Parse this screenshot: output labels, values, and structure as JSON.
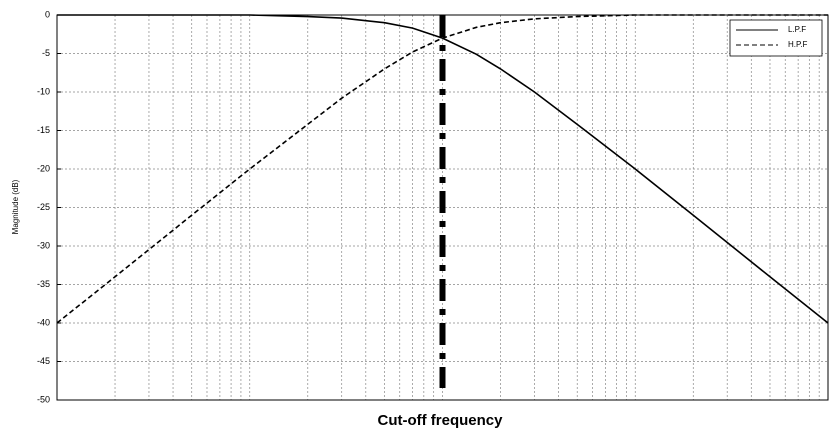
{
  "chart_data": {
    "type": "line",
    "x_label": "Cut-off frequency",
    "y_label": "Magnitude (dB)",
    "x": [
      1,
      2,
      5,
      10,
      20,
      30,
      50,
      70,
      100,
      150,
      200,
      300,
      500,
      1000,
      2000,
      5000,
      10000
    ],
    "series": [
      {
        "name": "L.P.F",
        "color": "#000000",
        "dash": "solid",
        "values": [
          0,
          0,
          0,
          0,
          -0.2,
          -0.4,
          -1,
          -1.7,
          -3,
          -5.1,
          -7,
          -10,
          -14.2,
          -20,
          -26,
          -34,
          -40
        ]
      },
      {
        "name": "H.P.F",
        "color": "#000000",
        "dash": "dashed",
        "values": [
          -40,
          -34,
          -26,
          -20,
          -14.2,
          -10.8,
          -7,
          -4.8,
          -3,
          -1.6,
          -1,
          -0.5,
          -0.2,
          0,
          0,
          0,
          0
        ]
      }
    ],
    "vline_x": 100,
    "xlim": [
      1,
      10000
    ],
    "log_x": true,
    "ylim": [
      -50,
      0
    ],
    "yticks": [
      0,
      -5,
      -10,
      -15,
      -20,
      -25,
      -30,
      -35,
      -40,
      -45,
      -50
    ],
    "grid": true,
    "legend": "upper right"
  }
}
